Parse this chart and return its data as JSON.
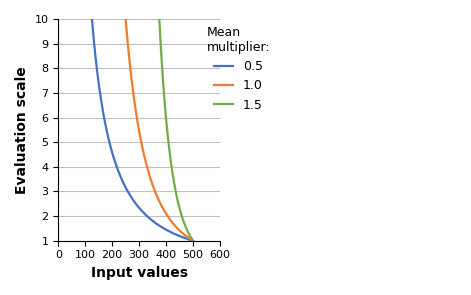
{
  "title": "",
  "xlabel": "Input values",
  "ylabel": "Evaluation scale",
  "xlim": [
    0,
    600
  ],
  "ylim": [
    1,
    10
  ],
  "xticks": [
    0,
    100,
    200,
    300,
    400,
    500,
    600
  ],
  "yticks": [
    1,
    2,
    3,
    4,
    5,
    6,
    7,
    8,
    9,
    10
  ],
  "legend_title": "Mean\nmultiplier:",
  "series": [
    {
      "label": "0.5",
      "color": "#4472C4",
      "multiplier": 0.5
    },
    {
      "label": "1.0",
      "color": "#ED7D31",
      "multiplier": 1.0
    },
    {
      "label": "1.5",
      "color": "#70AD47",
      "multiplier": 1.5
    }
  ],
  "mean_value": 500,
  "exponent": 2,
  "x_max": 500,
  "y_min": 1,
  "y_max": 10,
  "bg_color": "#FFFFFF",
  "grid_color": "#C0C0C0",
  "linewidth": 1.6
}
